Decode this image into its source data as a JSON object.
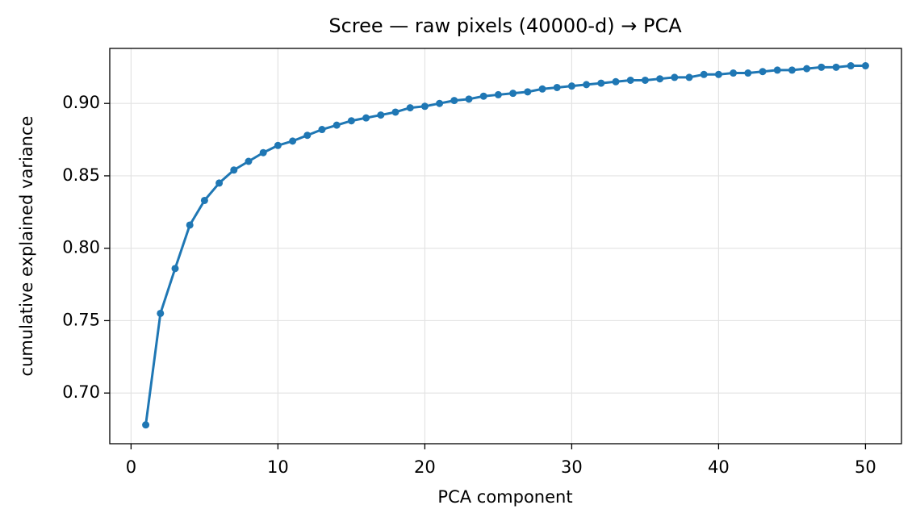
{
  "chart_data": {
    "type": "line",
    "title": "Scree — raw pixels (40000-d) → PCA",
    "x_label": "PCA component",
    "y_label": "cumulative explained variance",
    "x": [
      1,
      2,
      3,
      4,
      5,
      6,
      7,
      8,
      9,
      10,
      11,
      12,
      13,
      14,
      15,
      16,
      17,
      18,
      19,
      20,
      21,
      22,
      23,
      24,
      25,
      26,
      27,
      28,
      29,
      30,
      31,
      32,
      33,
      34,
      35,
      36,
      37,
      38,
      39,
      40,
      41,
      42,
      43,
      44,
      45,
      46,
      47,
      48,
      49,
      50
    ],
    "series": [
      {
        "color": "#1f77b4",
        "values": [
          0.678,
          0.755,
          0.786,
          0.816,
          0.833,
          0.845,
          0.854,
          0.86,
          0.866,
          0.871,
          0.874,
          0.878,
          0.882,
          0.885,
          0.888,
          0.89,
          0.892,
          0.894,
          0.897,
          0.898,
          0.9,
          0.902,
          0.903,
          0.905,
          0.906,
          0.907,
          0.908,
          0.91,
          0.911,
          0.912,
          0.913,
          0.914,
          0.915,
          0.916,
          0.916,
          0.917,
          0.918,
          0.918,
          0.92,
          0.92,
          0.921,
          0.921,
          0.922,
          0.923,
          0.923,
          0.924,
          0.925,
          0.925,
          0.926,
          0.926
        ]
      }
    ],
    "xlim": [
      -1.45,
      52.45
    ],
    "ylim": [
      0.665,
      0.938
    ],
    "xticks": [
      0,
      10,
      20,
      30,
      40,
      50
    ],
    "yticks": [
      {
        "value": 0.7,
        "label": "0.70"
      },
      {
        "value": 0.75,
        "label": "0.75"
      },
      {
        "value": 0.8,
        "label": "0.80"
      },
      {
        "value": 0.85,
        "label": "0.85"
      },
      {
        "value": 0.9,
        "label": "0.90"
      }
    ],
    "grid": true
  }
}
